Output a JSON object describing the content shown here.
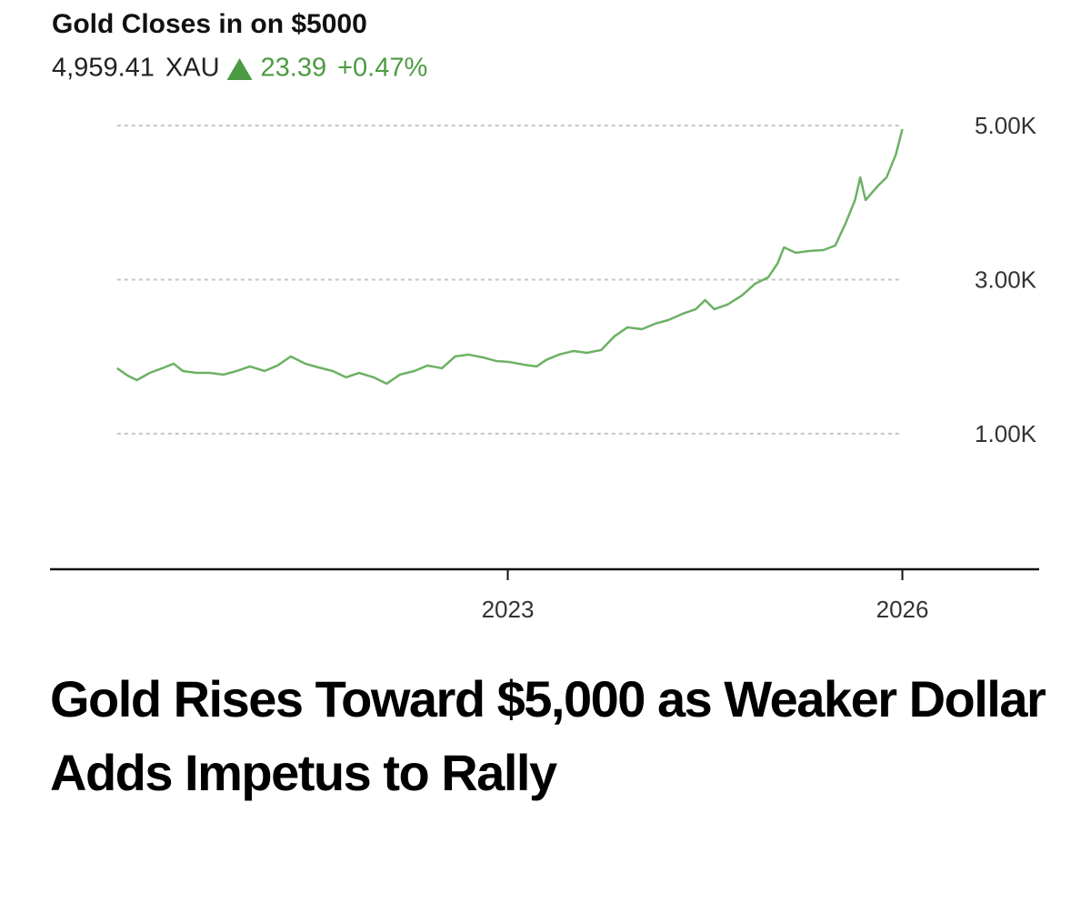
{
  "chart_data": {
    "type": "line",
    "title": "Gold Closes in on $5000",
    "price": "4,959.41",
    "symbol": "XAU",
    "change": "23.39",
    "change_pct": "+0.47%",
    "change_color": "#4c9b43",
    "x": [
      2020.03,
      2020.11,
      2020.18,
      2020.28,
      2020.39,
      2020.46,
      2020.53,
      2020.63,
      2020.73,
      2020.84,
      2020.94,
      2021.04,
      2021.15,
      2021.25,
      2021.35,
      2021.46,
      2021.56,
      2021.67,
      2021.77,
      2021.87,
      2021.98,
      2022.08,
      2022.18,
      2022.29,
      2022.39,
      2022.5,
      2022.6,
      2022.7,
      2022.81,
      2022.91,
      2023.01,
      2023.12,
      2023.22,
      2023.29,
      2023.39,
      2023.5,
      2023.6,
      2023.71,
      2023.81,
      2023.91,
      2024.02,
      2024.12,
      2024.22,
      2024.33,
      2024.43,
      2024.5,
      2024.57,
      2024.67,
      2024.78,
      2024.88,
      2024.98,
      2025.05,
      2025.1,
      2025.19,
      2025.29,
      2025.4,
      2025.49,
      2025.57,
      2025.64,
      2025.68,
      2025.72,
      2025.81,
      2025.88,
      2025.95,
      2026.0
    ],
    "series": [
      {
        "name": "XAU",
        "color": "#6cb164",
        "values": [
          1850,
          1755,
          1696,
          1790,
          1861,
          1909,
          1814,
          1790,
          1790,
          1767,
          1814,
          1873,
          1814,
          1885,
          2003,
          1909,
          1861,
          1814,
          1732,
          1790,
          1732,
          1649,
          1767,
          1814,
          1885,
          1850,
          2003,
          2027,
          1991,
          1944,
          1932,
          1897,
          1873,
          1956,
          2027,
          2074,
          2050,
          2086,
          2263,
          2381,
          2357,
          2428,
          2475,
          2558,
          2617,
          2735,
          2617,
          2676,
          2794,
          2947,
          3030,
          3207,
          3419,
          3349,
          3372,
          3384,
          3443,
          3738,
          4033,
          4328,
          4033,
          4210,
          4328,
          4623,
          4953
        ]
      }
    ],
    "xlim": [
      2019.52,
      2027.04
    ],
    "xticks": [
      2023,
      2026
    ],
    "ylim": [
      -760,
      5450
    ],
    "yticks": [
      {
        "value": 1000,
        "label": "1.00K"
      },
      {
        "value": 3000,
        "label": "3.00K"
      },
      {
        "value": 5000,
        "label": "5.00K"
      }
    ],
    "grid": true
  },
  "headline": "Gold Rises Toward $5,000 as Weaker Dollar Adds Impetus to Rally"
}
